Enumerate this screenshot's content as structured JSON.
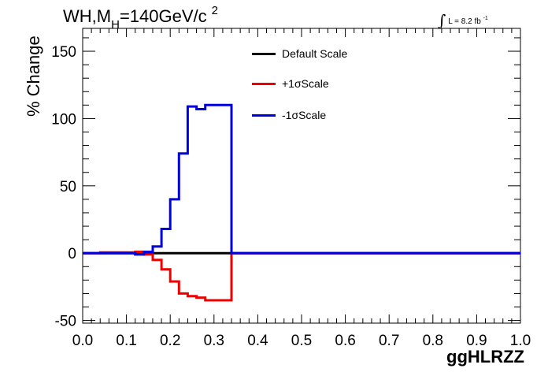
{
  "chart_data": {
    "type": "line",
    "title": {
      "prefix": "WH,M",
      "subscript": "H",
      "suffix": "=140GeV/c",
      "superscript": "2"
    },
    "lumi_label": {
      "integral": "∫",
      "text": "L = 8.2 fb",
      "superscript": "-1"
    },
    "ylabel": "% Change",
    "xlabel": "ggHLRZZ",
    "xlim": [
      0.0,
      1.0
    ],
    "ylim": [
      -52,
      167
    ],
    "x_ticks": [
      0.0,
      0.1,
      0.2,
      0.3,
      0.4,
      0.5,
      0.6,
      0.7,
      0.8,
      0.9,
      1.0
    ],
    "x_tick_labels": [
      "0.0",
      "0.1",
      "0.2",
      "0.3",
      "0.4",
      "0.5",
      "0.6",
      "0.7",
      "0.8",
      "0.9",
      "1.0"
    ],
    "y_ticks": [
      -50,
      0,
      50,
      100,
      150
    ],
    "y_tick_labels": [
      "-50",
      "0",
      "50",
      "100",
      "150"
    ],
    "legend": {
      "placement": "top-center",
      "entries": [
        {
          "label": "Default Scale",
          "color": "#000000"
        },
        {
          "label": "+1σScale",
          "color": "#ee0000"
        },
        {
          "label": "-1σScale",
          "color": "#0000dd"
        }
      ]
    },
    "bin_edges": [
      0.0,
      0.02,
      0.04,
      0.06,
      0.08,
      0.1,
      0.12,
      0.14,
      0.16,
      0.18,
      0.2,
      0.22,
      0.24,
      0.26,
      0.28,
      0.3,
      0.32,
      0.34,
      0.36,
      0.38,
      0.4,
      0.42,
      0.44,
      0.46,
      0.48,
      0.5,
      0.52,
      0.54,
      0.56,
      0.58,
      0.6,
      0.62,
      0.64,
      0.66,
      0.68,
      0.7,
      0.72,
      0.74,
      0.76,
      0.78,
      0.8,
      0.82,
      0.84,
      0.86,
      0.88,
      0.9,
      0.92,
      0.94,
      0.96,
      0.98,
      1.0
    ],
    "series": [
      {
        "name": "Default Scale",
        "color": "#000000",
        "values": [
          0,
          0,
          0,
          0,
          0,
          0,
          0,
          0,
          0,
          0,
          0,
          0,
          0,
          0,
          0,
          0,
          0,
          0,
          0,
          0,
          0,
          0,
          0,
          0,
          0,
          0,
          0,
          0,
          0,
          0,
          0,
          0,
          0,
          0,
          0,
          0,
          0,
          0,
          0,
          0,
          0,
          0,
          0,
          0,
          0,
          0,
          0,
          0,
          0,
          0
        ]
      },
      {
        "name": "+1σScale",
        "color": "#ee0000",
        "values": [
          0,
          0,
          0.5,
          0.5,
          0.5,
          0.5,
          1,
          -1,
          -5,
          -12,
          -21,
          -30,
          -32,
          -33,
          -35,
          -35,
          -35,
          0,
          0,
          0,
          0,
          0,
          0,
          0,
          0,
          0,
          0,
          0,
          0,
          0,
          0,
          0,
          0,
          0,
          0,
          0,
          0,
          0,
          0,
          0,
          0,
          0,
          0,
          0,
          0,
          0,
          0,
          0,
          0,
          0
        ]
      },
      {
        "name": "-1σScale",
        "color": "#0000dd",
        "values": [
          0,
          0,
          0,
          0,
          0,
          0,
          -1,
          1,
          5,
          18,
          40,
          74,
          109,
          107,
          110,
          110,
          110,
          0,
          0,
          0,
          0,
          0,
          0,
          0,
          0,
          0,
          0,
          0,
          0,
          0,
          0,
          0,
          0,
          0,
          0,
          0,
          0,
          0,
          0,
          0,
          0,
          0,
          0,
          0,
          0,
          0,
          0,
          0,
          0,
          0
        ]
      }
    ]
  }
}
